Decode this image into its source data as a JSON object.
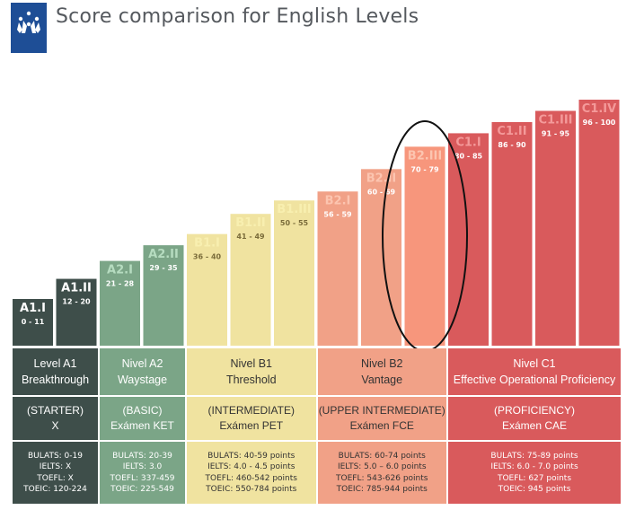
{
  "title": "Score comparison for English Levels",
  "logo_icon": "eu-flag-icon",
  "chart_data": {
    "type": "bar",
    "title": "Score comparison for English Levels",
    "categories": [
      "A1.I",
      "A1.II",
      "A2.I",
      "A2.II",
      "B1.I",
      "B1.II",
      "B1.III",
      "B2.I",
      "B2.II",
      "B2.III",
      "C1.I",
      "C1.II",
      "C1.III",
      "C1.IV"
    ],
    "ranges": [
      "0 - 11",
      "12 - 20",
      "21 - 28",
      "29 - 35",
      "36 - 40",
      "41 - 49",
      "50 - 55",
      "56 - 59",
      "60 - 69",
      "70 - 79",
      "80 - 85",
      "86 - 90",
      "91 - 95",
      "96 - 100"
    ],
    "values": [
      11,
      20,
      28,
      35,
      40,
      49,
      55,
      59,
      69,
      79,
      85,
      90,
      95,
      100
    ],
    "ylim": [
      0,
      100
    ],
    "highlighted": "B2.III",
    "colors": {
      "A1": "#3e4e4a",
      "A2": "#7ba587",
      "B1": "#f0e3a0",
      "B2": "#f1a187",
      "B2.III": "#f7967c",
      "C1": "#d95a5c"
    }
  },
  "table": {
    "groups": [
      {
        "key": "A1",
        "name_line1": "Level A1",
        "name_line2": "Breakthrough",
        "type_line1": "(STARTER)",
        "type_line2": "X",
        "scores": [
          "BULATS: 0-19",
          "IELTS: X",
          "TOEFL: X",
          "TOEIC: 120-224"
        ]
      },
      {
        "key": "A2",
        "name_line1": "Nivel A2",
        "name_line2": "Waystage",
        "type_line1": "(BASIC)",
        "type_line2": "Exámen KET",
        "scores": [
          "BULATS: 20-39",
          "IELTS: 3.0",
          "TOEFL: 337-459",
          "TOEIC: 225-549"
        ]
      },
      {
        "key": "B1",
        "name_line1": "Nivel B1",
        "name_line2": "Threshold",
        "type_line1": "(INTERMEDIATE)",
        "type_line2": "Exámen PET",
        "scores": [
          "BULATS: 40-59 points",
          "IELTS: 4.0 - 4.5 points",
          "TOEFL: 460-542 points",
          "TOEIC: 550-784 points"
        ]
      },
      {
        "key": "B2",
        "name_line1": "Nivel B2",
        "name_line2": "Vantage",
        "type_line1": "(UPPER INTERMEDIATE)",
        "type_line2": "Exámen FCE",
        "scores": [
          "BULATS: 60-74 points",
          "IELTS: 5.0 – 6.0 points",
          "TOEFL: 543-626 points",
          "TOEIC: 785-944 points"
        ]
      },
      {
        "key": "C1",
        "name_line1": "Nivel C1",
        "name_line2": "Effective Operational Proficiency",
        "type_line1": "(PROFICIENCY)",
        "type_line2": "Exámen CAE",
        "scores": [
          "BULATS: 75-89 points",
          "IELTS: 6.0 - 7.0 points",
          "TOEFL: 627 points",
          "TOEIC: 945 points"
        ]
      }
    ]
  }
}
